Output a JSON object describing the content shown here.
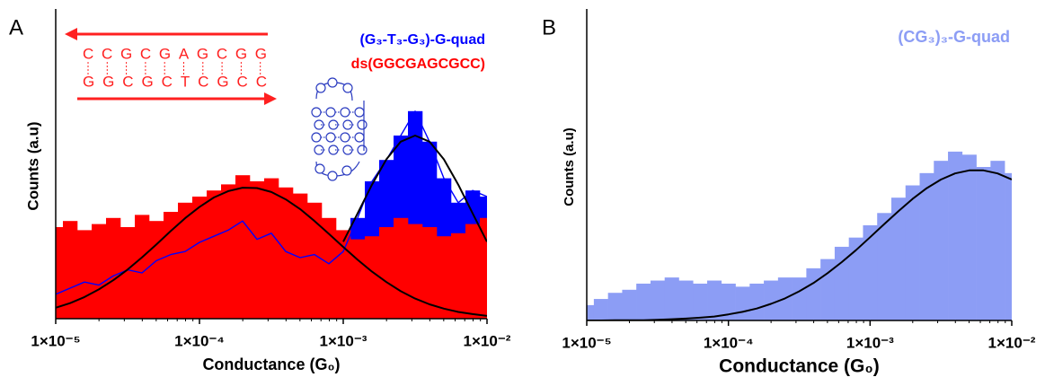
{
  "chart_data": [
    {
      "type": "histogram",
      "panel_label": "A",
      "ylabel": "Counts (a.u)",
      "xlabel": "Conductance (G₀)",
      "xscale": "log",
      "xlim": [
        1e-05,
        0.01
      ],
      "ylim": [
        0,
        100
      ],
      "legend": "upper right",
      "xticks": [
        {
          "value": 1e-05,
          "label": "1×10⁻⁵"
        },
        {
          "value": 0.0001,
          "label": "1×10⁻⁴"
        },
        {
          "value": 0.001,
          "label": "1×10⁻³"
        },
        {
          "value": 0.01,
          "label": "1×10⁻²"
        }
      ],
      "x": [
        1e-05,
        1.259e-05,
        1.585e-05,
        1.995e-05,
        2.512e-05,
        3.162e-05,
        3.981e-05,
        5.012e-05,
        6.31e-05,
        7.943e-05,
        0.0001,
        0.0001259,
        0.0001585,
        0.0001995,
        0.0002512,
        0.0003162,
        0.0003981,
        0.0005012,
        0.000631,
        0.0007943,
        0.001,
        0.001259,
        0.001585,
        0.001995,
        0.002512,
        0.003162,
        0.003981,
        0.005012,
        0.00631,
        0.007943,
        0.01
      ],
      "series": [
        {
          "name": "(G₃-T₃-G₃)-G-quad",
          "color": "#0000ff",
          "line": true,
          "values": [
            8,
            10,
            12,
            11,
            14,
            16,
            15,
            19,
            21,
            22,
            25,
            27,
            29,
            32,
            26,
            28,
            22,
            20,
            21,
            18,
            22,
            33,
            45,
            52,
            60,
            68,
            58,
            46,
            38,
            42,
            40
          ]
        },
        {
          "name": "ds(GGCGAGCGCC)",
          "color": "#ff0000",
          "line": false,
          "values": [
            30,
            32,
            29,
            31,
            33,
            30,
            34,
            32,
            35,
            38,
            40,
            42,
            44,
            47,
            45,
            46,
            43,
            41,
            38,
            33,
            29,
            26,
            27,
            30,
            33,
            31,
            30,
            27,
            28,
            31,
            33
          ]
        }
      ],
      "fits": [
        {
          "color": "#000000",
          "values": [
            3.6,
            5.1,
            7.1,
            9.6,
            12.6,
            16.1,
            20.1,
            24.3,
            28.7,
            32.9,
            36.6,
            39.7,
            41.8,
            42.9,
            42.8,
            41.5,
            39.1,
            35.9,
            32.0,
            27.8,
            23.5,
            19.3,
            15.4,
            12.0,
            9.0,
            6.6,
            4.7,
            3.3,
            2.2,
            1.5,
            0.9
          ]
        },
        {
          "color": "#000000",
          "values": [
            null,
            null,
            null,
            null,
            null,
            null,
            null,
            null,
            null,
            null,
            null,
            null,
            null,
            null,
            null,
            null,
            null,
            null,
            null,
            null,
            25.2,
            34.5,
            43.9,
            52.2,
            58.0,
            60,
            58.0,
            52.2,
            43.9,
            34.5,
            25.2
          ]
        }
      ],
      "inset": {
        "top_strand": "CCGCGAGCGG",
        "bottom_strand": "GGCGCTCGCC"
      }
    },
    {
      "type": "histogram",
      "panel_label": "B",
      "ylabel": "Counts (a.u)",
      "xlabel": "Conductance (G₀)",
      "xscale": "log",
      "xlim": [
        1e-05,
        0.01
      ],
      "ylim": [
        0,
        100
      ],
      "legend": "upper right",
      "xticks": [
        {
          "value": 1e-05,
          "label": "1×10⁻⁵"
        },
        {
          "value": 0.0001,
          "label": "1×10⁻⁴"
        },
        {
          "value": 0.001,
          "label": "1×10⁻³"
        },
        {
          "value": 0.01,
          "label": "1×10⁻²"
        }
      ],
      "x": [
        1e-05,
        1.259e-05,
        1.585e-05,
        1.995e-05,
        2.512e-05,
        3.162e-05,
        3.981e-05,
        5.012e-05,
        6.31e-05,
        7.943e-05,
        0.0001,
        0.0001259,
        0.0001585,
        0.0001995,
        0.0002512,
        0.0003162,
        0.0003981,
        0.0005012,
        0.000631,
        0.0007943,
        0.001,
        0.001259,
        0.001585,
        0.001995,
        0.002512,
        0.003162,
        0.003981,
        0.005012,
        0.00631,
        0.007943,
        0.01
      ],
      "series": [
        {
          "name": "(CG₃)₃-G-quad",
          "color": "#8c9df5",
          "line": false,
          "values": [
            5,
            7,
            9,
            10,
            12,
            13,
            14,
            13,
            12,
            13,
            12,
            11,
            12,
            13,
            14,
            14,
            17,
            20,
            24,
            27,
            31,
            35,
            40,
            44,
            48,
            52,
            55,
            54,
            50,
            52,
            48
          ]
        }
      ],
      "fits": [
        {
          "color": "#000000",
          "values": [
            0.0,
            0.0,
            0.1,
            0.1,
            0.1,
            0.2,
            0.4,
            0.6,
            0.9,
            1.3,
            2.0,
            2.8,
            3.9,
            5.4,
            7.2,
            9.5,
            12.2,
            15.4,
            19.0,
            22.9,
            27.1,
            31.4,
            35.6,
            39.6,
            43.1,
            45.9,
            47.9,
            48.9,
            48.9,
            47.9,
            45.9
          ]
        }
      ]
    }
  ]
}
